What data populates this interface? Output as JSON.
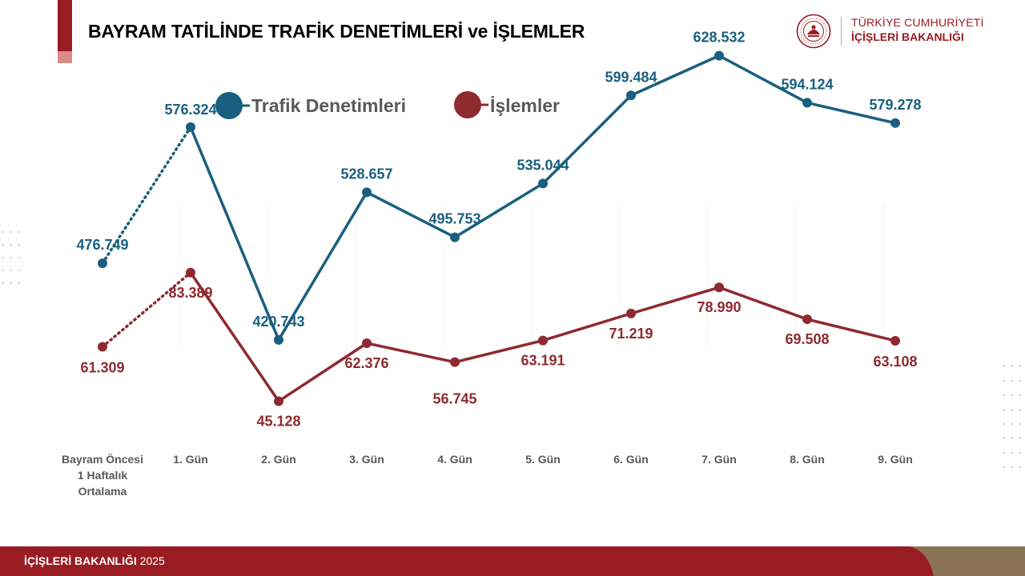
{
  "header": {
    "title": "BAYRAM TATİLİNDE TRAFİK DENETİMLERİ ve İŞLEMLER"
  },
  "logo": {
    "line1": "TÜRKİYE CUMHURİYETİ",
    "line2": "İÇİŞLERİ BAKANLIĞI",
    "seal_icon": "ministry-seal-icon"
  },
  "colors": {
    "denetim": "#1a5f7f",
    "islem": "#8e2a30",
    "brand_red": "#9a1c23",
    "brand_brown": "#8b7355"
  },
  "chart_data": {
    "type": "line",
    "categories": [
      "Bayram Öncesi 1 Haftalık Ortalama",
      "1. Gün",
      "2. Gün",
      "3. Gün",
      "4. Gün",
      "5. Gün",
      "6. Gün",
      "7. Gün",
      "8. Gün",
      "9. Gün"
    ],
    "category_lines": [
      [
        "Bayram Öncesi",
        "1 Haftalık",
        "Ortalama"
      ],
      [
        "1. Gün"
      ],
      [
        "2. Gün"
      ],
      [
        "3. Gün"
      ],
      [
        "4. Gün"
      ],
      [
        "5. Gün"
      ],
      [
        "6. Gün"
      ],
      [
        "7. Gün"
      ],
      [
        "8. Gün"
      ],
      [
        "9. Gün"
      ]
    ],
    "series": [
      {
        "name": "Trafik Denetimleri",
        "values": [
          476749,
          576324,
          420743,
          528657,
          495753,
          535044,
          599484,
          628532,
          594124,
          579278
        ],
        "labels": [
          "476.749",
          "576.324",
          "420.743",
          "528.657",
          "495.753",
          "535.044",
          "599.484",
          "628.532",
          "594.124",
          "579.278"
        ],
        "color": "#1a5f7f"
      },
      {
        "name": "İşlemler",
        "values": [
          61309,
          83389,
          45128,
          62376,
          56745,
          63191,
          71219,
          78990,
          69508,
          63108
        ],
        "labels": [
          "61.309",
          "83.389",
          "45.128",
          "62.376",
          "56.745",
          "63.191",
          "71.219",
          "78.990",
          "69.508",
          "63.108"
        ],
        "color": "#8e2a30"
      }
    ],
    "first_segment_style": "dotted",
    "legend_position": "top",
    "grid": false
  },
  "footer": {
    "ministry": "İÇİŞLERİ BAKANLIĞI",
    "year": "2025"
  }
}
